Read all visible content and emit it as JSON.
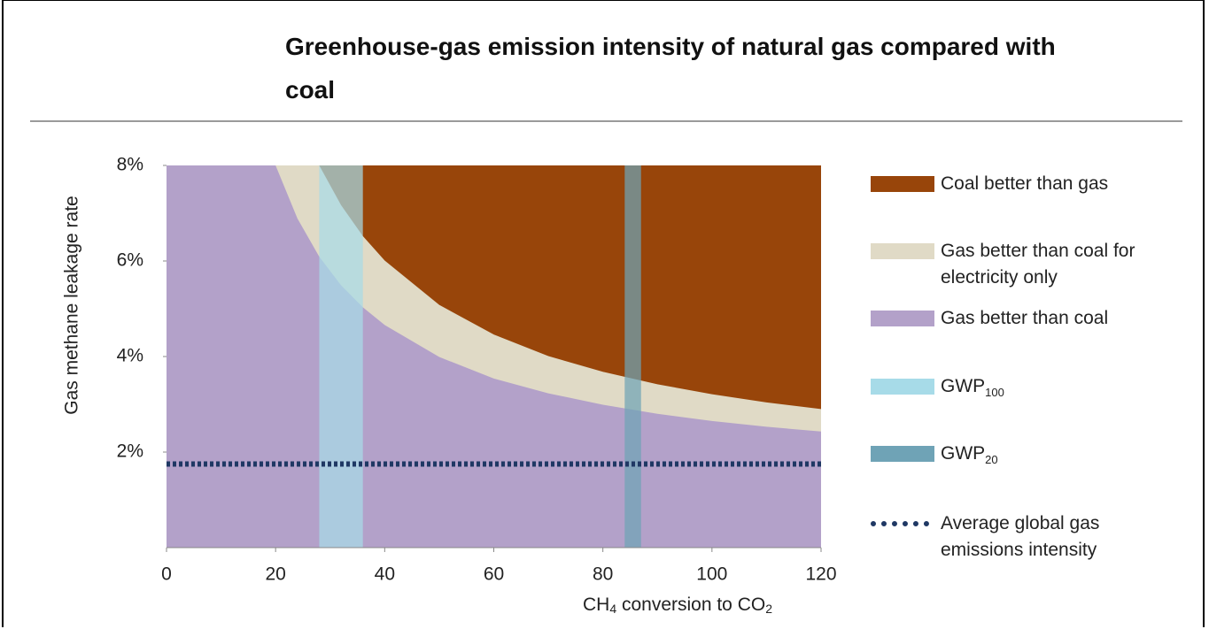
{
  "chart_data": {
    "type": "region",
    "title": "Greenhouse-gas emission intensity of natural gas compared with coal",
    "xlabel_parts": [
      "CH",
      "4",
      " conversion to CO",
      "2"
    ],
    "ylabel": "Gas methane leakage rate",
    "xlim": [
      0,
      120
    ],
    "xticks": [
      0,
      20,
      40,
      60,
      80,
      100,
      120
    ],
    "ylim": [
      0,
      8
    ],
    "yticks": [
      {
        "value": 2,
        "label": "2%"
      },
      {
        "value": 4,
        "label": "4%"
      },
      {
        "value": 6,
        "label": "6%"
      },
      {
        "value": 8,
        "label": "8%"
      }
    ],
    "series": [
      {
        "name": "Coal better than gas",
        "color": "#98450a",
        "kind": "area_above",
        "x": [
          28,
          32,
          36,
          40,
          50,
          60,
          70,
          80,
          90,
          100,
          110,
          120
        ],
        "values": [
          8.0,
          7.17,
          6.52,
          6.01,
          5.08,
          4.46,
          4.01,
          3.68,
          3.42,
          3.21,
          3.04,
          2.9
        ]
      },
      {
        "name": "Gas better than coal for electricity only",
        "color": "#e0dac6",
        "kind": "area_above",
        "x": [
          20,
          24,
          28,
          32,
          36,
          40,
          50,
          60,
          70,
          80,
          90,
          100,
          110,
          120
        ],
        "values": [
          8.0,
          6.89,
          6.09,
          5.49,
          5.03,
          4.66,
          3.99,
          3.54,
          3.23,
          2.99,
          2.8,
          2.65,
          2.53,
          2.43
        ]
      },
      {
        "name": "Gas better than coal",
        "color": "#b3a1c9",
        "kind": "background"
      },
      {
        "name": "GWP",
        "name_sub": "100",
        "color": "#a7dbe8",
        "kind": "band",
        "range": [
          28,
          36
        ]
      },
      {
        "name": "GWP",
        "name_sub": "20",
        "color": "#6fa3b6",
        "kind": "band",
        "range": [
          84,
          87
        ]
      },
      {
        "name": "Average global gas emissions intensity",
        "color": "#1f3864",
        "kind": "hline",
        "value": 1.75
      }
    ]
  }
}
